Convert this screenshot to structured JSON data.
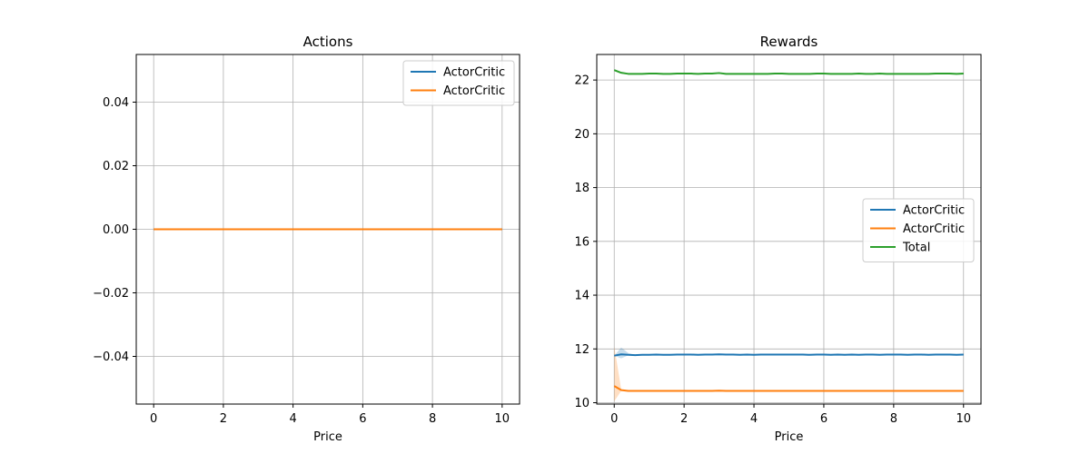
{
  "figure": {
    "background": "#ffffff"
  },
  "chart_data": [
    {
      "type": "line",
      "title": "Actions",
      "xlabel": "Price",
      "ylabel": "",
      "xlim": [
        -0.5,
        10.5
      ],
      "ylim": [
        -0.055,
        0.055
      ],
      "xticks": [
        0,
        2,
        4,
        6,
        8,
        10
      ],
      "yticks": [
        -0.04,
        -0.02,
        0.0,
        0.02,
        0.04
      ],
      "ytick_labels": [
        "−0.04",
        "−0.02",
        "0.00",
        "0.02",
        "0.04"
      ],
      "grid": true,
      "legend": "top-right",
      "x": [
        0,
        1,
        2,
        3,
        4,
        5,
        6,
        7,
        8,
        9,
        10
      ],
      "series": [
        {
          "name": "ActorCritic",
          "color": "#1f77b4",
          "values": [
            0,
            0,
            0,
            0,
            0,
            0,
            0,
            0,
            0,
            0,
            0
          ]
        },
        {
          "name": "ActorCritic",
          "color": "#ff7f0e",
          "values": [
            0,
            0,
            0,
            0,
            0,
            0,
            0,
            0,
            0,
            0,
            0
          ]
        }
      ]
    },
    {
      "type": "line",
      "title": "Rewards",
      "xlabel": "Price",
      "ylabel": "",
      "xlim": [
        -0.5,
        10.5
      ],
      "ylim": [
        9.95,
        22.95
      ],
      "xticks": [
        0,
        2,
        4,
        6,
        8,
        10
      ],
      "yticks": [
        10,
        12,
        14,
        16,
        18,
        20,
        22
      ],
      "ytick_labels": [
        "10",
        "12",
        "14",
        "16",
        "18",
        "20",
        "22"
      ],
      "grid": true,
      "legend": "center-right",
      "x": [
        0,
        0.2,
        0.4,
        0.6,
        0.8,
        1,
        1.2,
        1.4,
        1.6,
        1.8,
        2,
        2.2,
        2.4,
        2.6,
        2.8,
        3,
        3.2,
        3.4,
        3.6,
        3.8,
        4,
        4.2,
        4.4,
        4.6,
        4.8,
        5,
        5.2,
        5.4,
        5.6,
        5.8,
        6,
        6.2,
        6.4,
        6.6,
        6.8,
        7,
        7.2,
        7.4,
        7.6,
        7.8,
        8,
        8.2,
        8.4,
        8.6,
        8.8,
        9,
        9.2,
        9.4,
        9.6,
        9.8,
        10
      ],
      "series": [
        {
          "name": "ActorCritic",
          "color": "#1f77b4",
          "values": [
            11.75,
            11.8,
            11.78,
            11.77,
            11.78,
            11.78,
            11.79,
            11.78,
            11.78,
            11.79,
            11.79,
            11.79,
            11.78,
            11.79,
            11.79,
            11.8,
            11.79,
            11.79,
            11.78,
            11.79,
            11.78,
            11.79,
            11.79,
            11.79,
            11.79,
            11.79,
            11.79,
            11.79,
            11.78,
            11.79,
            11.79,
            11.78,
            11.79,
            11.78,
            11.79,
            11.78,
            11.79,
            11.79,
            11.78,
            11.79,
            11.79,
            11.79,
            11.78,
            11.79,
            11.79,
            11.78,
            11.79,
            11.79,
            11.79,
            11.78,
            11.79
          ],
          "band_lower": [
            11.75,
            11.65,
            11.76,
            11.77,
            11.78,
            11.78,
            11.79,
            11.78,
            11.78,
            11.79,
            11.79,
            11.79,
            11.78,
            11.79,
            11.79,
            11.8,
            11.79,
            11.79,
            11.78,
            11.79,
            11.78,
            11.79,
            11.79,
            11.79,
            11.79,
            11.79,
            11.79,
            11.79,
            11.78,
            11.79,
            11.79,
            11.78,
            11.79,
            11.78,
            11.79,
            11.78,
            11.79,
            11.79,
            11.78,
            11.79,
            11.79,
            11.79,
            11.78,
            11.79,
            11.79,
            11.78,
            11.79,
            11.79,
            11.79,
            11.78,
            11.79
          ],
          "band_upper": [
            11.75,
            12.05,
            11.85,
            11.77,
            11.78,
            11.78,
            11.79,
            11.78,
            11.78,
            11.79,
            11.79,
            11.79,
            11.78,
            11.79,
            11.79,
            11.8,
            11.79,
            11.79,
            11.78,
            11.79,
            11.78,
            11.79,
            11.79,
            11.79,
            11.79,
            11.79,
            11.79,
            11.79,
            11.78,
            11.79,
            11.79,
            11.78,
            11.79,
            11.78,
            11.79,
            11.78,
            11.79,
            11.79,
            11.78,
            11.79,
            11.79,
            11.79,
            11.78,
            11.79,
            11.79,
            11.78,
            11.79,
            11.79,
            11.79,
            11.78,
            11.79
          ]
        },
        {
          "name": "ActorCritic",
          "color": "#ff7f0e",
          "values": [
            10.62,
            10.47,
            10.44,
            10.44,
            10.44,
            10.44,
            10.44,
            10.44,
            10.44,
            10.44,
            10.44,
            10.44,
            10.44,
            10.44,
            10.44,
            10.45,
            10.44,
            10.44,
            10.44,
            10.44,
            10.44,
            10.44,
            10.44,
            10.44,
            10.44,
            10.44,
            10.44,
            10.44,
            10.44,
            10.44,
            10.44,
            10.44,
            10.44,
            10.44,
            10.44,
            10.44,
            10.44,
            10.44,
            10.44,
            10.44,
            10.44,
            10.44,
            10.44,
            10.44,
            10.44,
            10.44,
            10.44,
            10.44,
            10.44,
            10.44,
            10.44
          ],
          "band_lower": [
            10.05,
            10.44,
            10.44,
            10.44,
            10.44,
            10.44,
            10.44,
            10.44,
            10.44,
            10.44,
            10.44,
            10.44,
            10.44,
            10.44,
            10.44,
            10.45,
            10.44,
            10.44,
            10.44,
            10.44,
            10.44,
            10.44,
            10.44,
            10.44,
            10.44,
            10.44,
            10.44,
            10.44,
            10.44,
            10.44,
            10.44,
            10.44,
            10.44,
            10.44,
            10.44,
            10.44,
            10.44,
            10.44,
            10.44,
            10.44,
            10.44,
            10.44,
            10.44,
            10.44,
            10.44,
            10.44,
            10.44,
            10.44,
            10.44,
            10.44,
            10.44
          ],
          "band_upper": [
            12.1,
            10.5,
            10.44,
            10.44,
            10.44,
            10.44,
            10.44,
            10.44,
            10.44,
            10.44,
            10.44,
            10.44,
            10.44,
            10.44,
            10.44,
            10.45,
            10.44,
            10.44,
            10.44,
            10.44,
            10.44,
            10.44,
            10.44,
            10.44,
            10.44,
            10.44,
            10.44,
            10.44,
            10.44,
            10.44,
            10.44,
            10.44,
            10.44,
            10.44,
            10.44,
            10.44,
            10.44,
            10.44,
            10.44,
            10.44,
            10.44,
            10.44,
            10.44,
            10.44,
            10.44,
            10.44,
            10.44,
            10.44,
            10.44,
            10.44,
            10.44
          ]
        },
        {
          "name": "Total",
          "color": "#2ca02c",
          "values": [
            22.37,
            22.27,
            22.23,
            22.23,
            22.23,
            22.24,
            22.24,
            22.23,
            22.23,
            22.24,
            22.24,
            22.24,
            22.23,
            22.24,
            22.24,
            22.26,
            22.23,
            22.23,
            22.23,
            22.23,
            22.23,
            22.23,
            22.23,
            22.24,
            22.24,
            22.23,
            22.23,
            22.23,
            22.23,
            22.24,
            22.24,
            22.23,
            22.23,
            22.23,
            22.23,
            22.24,
            22.23,
            22.23,
            22.24,
            22.23,
            22.23,
            22.23,
            22.23,
            22.23,
            22.23,
            22.23,
            22.24,
            22.24,
            22.24,
            22.23,
            22.24
          ]
        }
      ]
    }
  ]
}
